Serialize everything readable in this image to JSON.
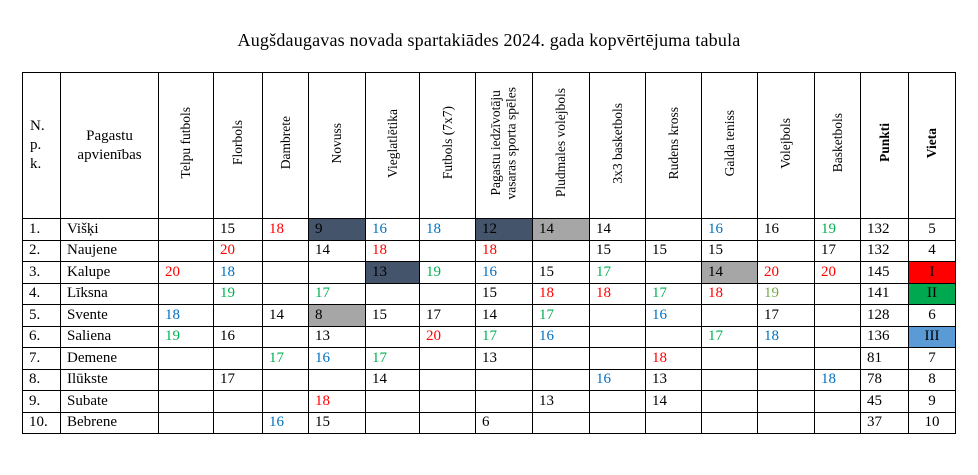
{
  "title": "Augšdaugavas novada spartakiādes 2024. gada kopvērtējuma tabula",
  "colors": {
    "text_red": "#FF0000",
    "text_blue": "#0070C0",
    "text_green": "#00B050",
    "text_light_green": "#70AD47",
    "bg_dark_slate": "#44546A",
    "bg_gray": "#A6A6A6",
    "bg_red": "#FF0000",
    "bg_green": "#00A94F",
    "bg_blue": "#5B9BD5"
  },
  "table": {
    "npk_header": "N.\np.\nk.",
    "name_header": "Pagastu apvienības",
    "punkti_header": "Punkti",
    "vieta_header": "Vieta",
    "sport_columns": [
      "Telpu futbols",
      "Florbols",
      "Dambrete",
      "Novuss",
      "Vieglatlētika",
      "Futbols (7x7)",
      "Pagastu  iedzīvotāju\nvasaras sporta spēles",
      "Pludmales volejbols",
      "3x3 basketbols",
      "Rudens kross",
      "Galda teniss",
      "Volejbols",
      "Basketbols"
    ],
    "rows": [
      {
        "npk": "1.",
        "name": "Višķi",
        "cells": [
          {},
          {
            "v": "15"
          },
          {
            "v": "18",
            "c": "red"
          },
          {
            "v": "9",
            "bg": "slate"
          },
          {
            "v": "16",
            "c": "blue"
          },
          {
            "v": "18",
            "c": "blue"
          },
          {
            "v": "12",
            "bg": "slate"
          },
          {
            "v": "14",
            "bg": "gray"
          },
          {
            "v": "14"
          },
          {},
          {
            "v": "16",
            "c": "blue"
          },
          {
            "v": "16"
          },
          {
            "v": "19",
            "c": "green"
          }
        ],
        "punkti": "132",
        "vieta": {
          "v": "5"
        }
      },
      {
        "npk": "2.",
        "name": "Naujene",
        "cells": [
          {},
          {
            "v": "20",
            "c": "red"
          },
          {},
          {
            "v": "14"
          },
          {
            "v": "18",
            "c": "red"
          },
          {},
          {
            "v": "18",
            "c": "red"
          },
          {},
          {
            "v": "15"
          },
          {
            "v": "15"
          },
          {
            "v": "15"
          },
          {},
          {
            "v": "17"
          }
        ],
        "punkti": "132",
        "vieta": {
          "v": "4"
        }
      },
      {
        "npk": "3.",
        "name": "Kalupe",
        "cells": [
          {
            "v": "20",
            "c": "red"
          },
          {
            "v": "18",
            "c": "blue"
          },
          {},
          {},
          {
            "v": "13",
            "bg": "slate"
          },
          {
            "v": "19",
            "c": "green"
          },
          {
            "v": "16",
            "c": "blue"
          },
          {
            "v": "15"
          },
          {
            "v": "17",
            "c": "green"
          },
          {},
          {
            "v": "14",
            "bg": "gray"
          },
          {
            "v": "20",
            "c": "red"
          },
          {
            "v": "20",
            "c": "red"
          }
        ],
        "punkti": "145",
        "vieta": {
          "v": "I",
          "bg": "red"
        }
      },
      {
        "npk": "4.",
        "name": "Līksna",
        "cells": [
          {},
          {
            "v": "19",
            "c": "green"
          },
          {},
          {
            "v": "17",
            "c": "green"
          },
          {},
          {},
          {
            "v": "15"
          },
          {
            "v": "18",
            "c": "red"
          },
          {
            "v": "18",
            "c": "red"
          },
          {
            "v": "17",
            "c": "green"
          },
          {
            "v": "18",
            "c": "red"
          },
          {
            "v": "19",
            "c": "lgreen"
          },
          {}
        ],
        "punkti": "141",
        "vieta": {
          "v": "II",
          "bg": "green"
        }
      },
      {
        "npk": "5.",
        "name": "Svente",
        "cells": [
          {
            "v": "18",
            "c": "blue"
          },
          {},
          {
            "v": "14"
          },
          {
            "v": "8",
            "bg": "gray"
          },
          {
            "v": "15"
          },
          {
            "v": "17"
          },
          {
            "v": "14"
          },
          {
            "v": "17",
            "c": "green"
          },
          {},
          {
            "v": "16",
            "c": "blue"
          },
          {},
          {
            "v": "17"
          },
          {}
        ],
        "punkti": "128",
        "vieta": {
          "v": "6"
        }
      },
      {
        "npk": "6.",
        "name": "Saliena",
        "cells": [
          {
            "v": "19",
            "c": "green"
          },
          {
            "v": "16"
          },
          {},
          {
            "v": "13"
          },
          {},
          {
            "v": "20",
            "c": "red"
          },
          {
            "v": "17",
            "c": "green"
          },
          {
            "v": "16",
            "c": "blue"
          },
          {},
          {},
          {
            "v": "17",
            "c": "green"
          },
          {
            "v": "18",
            "c": "blue"
          },
          {}
        ],
        "punkti": "136",
        "vieta": {
          "v": "III",
          "bg": "blue"
        }
      },
      {
        "npk": "7.",
        "name": "Demene",
        "cells": [
          {},
          {},
          {
            "v": "17",
            "c": "green"
          },
          {
            "v": "16",
            "c": "blue"
          },
          {
            "v": "17",
            "c": "green"
          },
          {},
          {
            "v": "13"
          },
          {},
          {},
          {
            "v": "18",
            "c": "red"
          },
          {},
          {},
          {}
        ],
        "punkti": "81",
        "vieta": {
          "v": "7"
        }
      },
      {
        "npk": "8.",
        "name": "Ilūkste",
        "cells": [
          {},
          {
            "v": "17"
          },
          {},
          {},
          {
            "v": "14"
          },
          {},
          {},
          {},
          {
            "v": "16",
            "c": "blue"
          },
          {
            "v": "13"
          },
          {},
          {},
          {
            "v": "18",
            "c": "blue"
          }
        ],
        "punkti": "78",
        "vieta": {
          "v": "8"
        }
      },
      {
        "npk": "9.",
        "name": "Subate",
        "cells": [
          {},
          {},
          {},
          {
            "v": "18",
            "c": "red"
          },
          {},
          {},
          {},
          {
            "v": "13"
          },
          {},
          {
            "v": "14"
          },
          {},
          {},
          {}
        ],
        "punkti": "45",
        "vieta": {
          "v": "9"
        }
      },
      {
        "npk": "10.",
        "name": "Bebrene",
        "cells": [
          {},
          {},
          {
            "v": "16",
            "c": "blue"
          },
          {
            "v": "15"
          },
          {},
          {},
          {
            "v": "6"
          },
          {},
          {},
          {},
          {},
          {},
          {}
        ],
        "punkti": "37",
        "vieta": {
          "v": "10"
        }
      }
    ]
  }
}
